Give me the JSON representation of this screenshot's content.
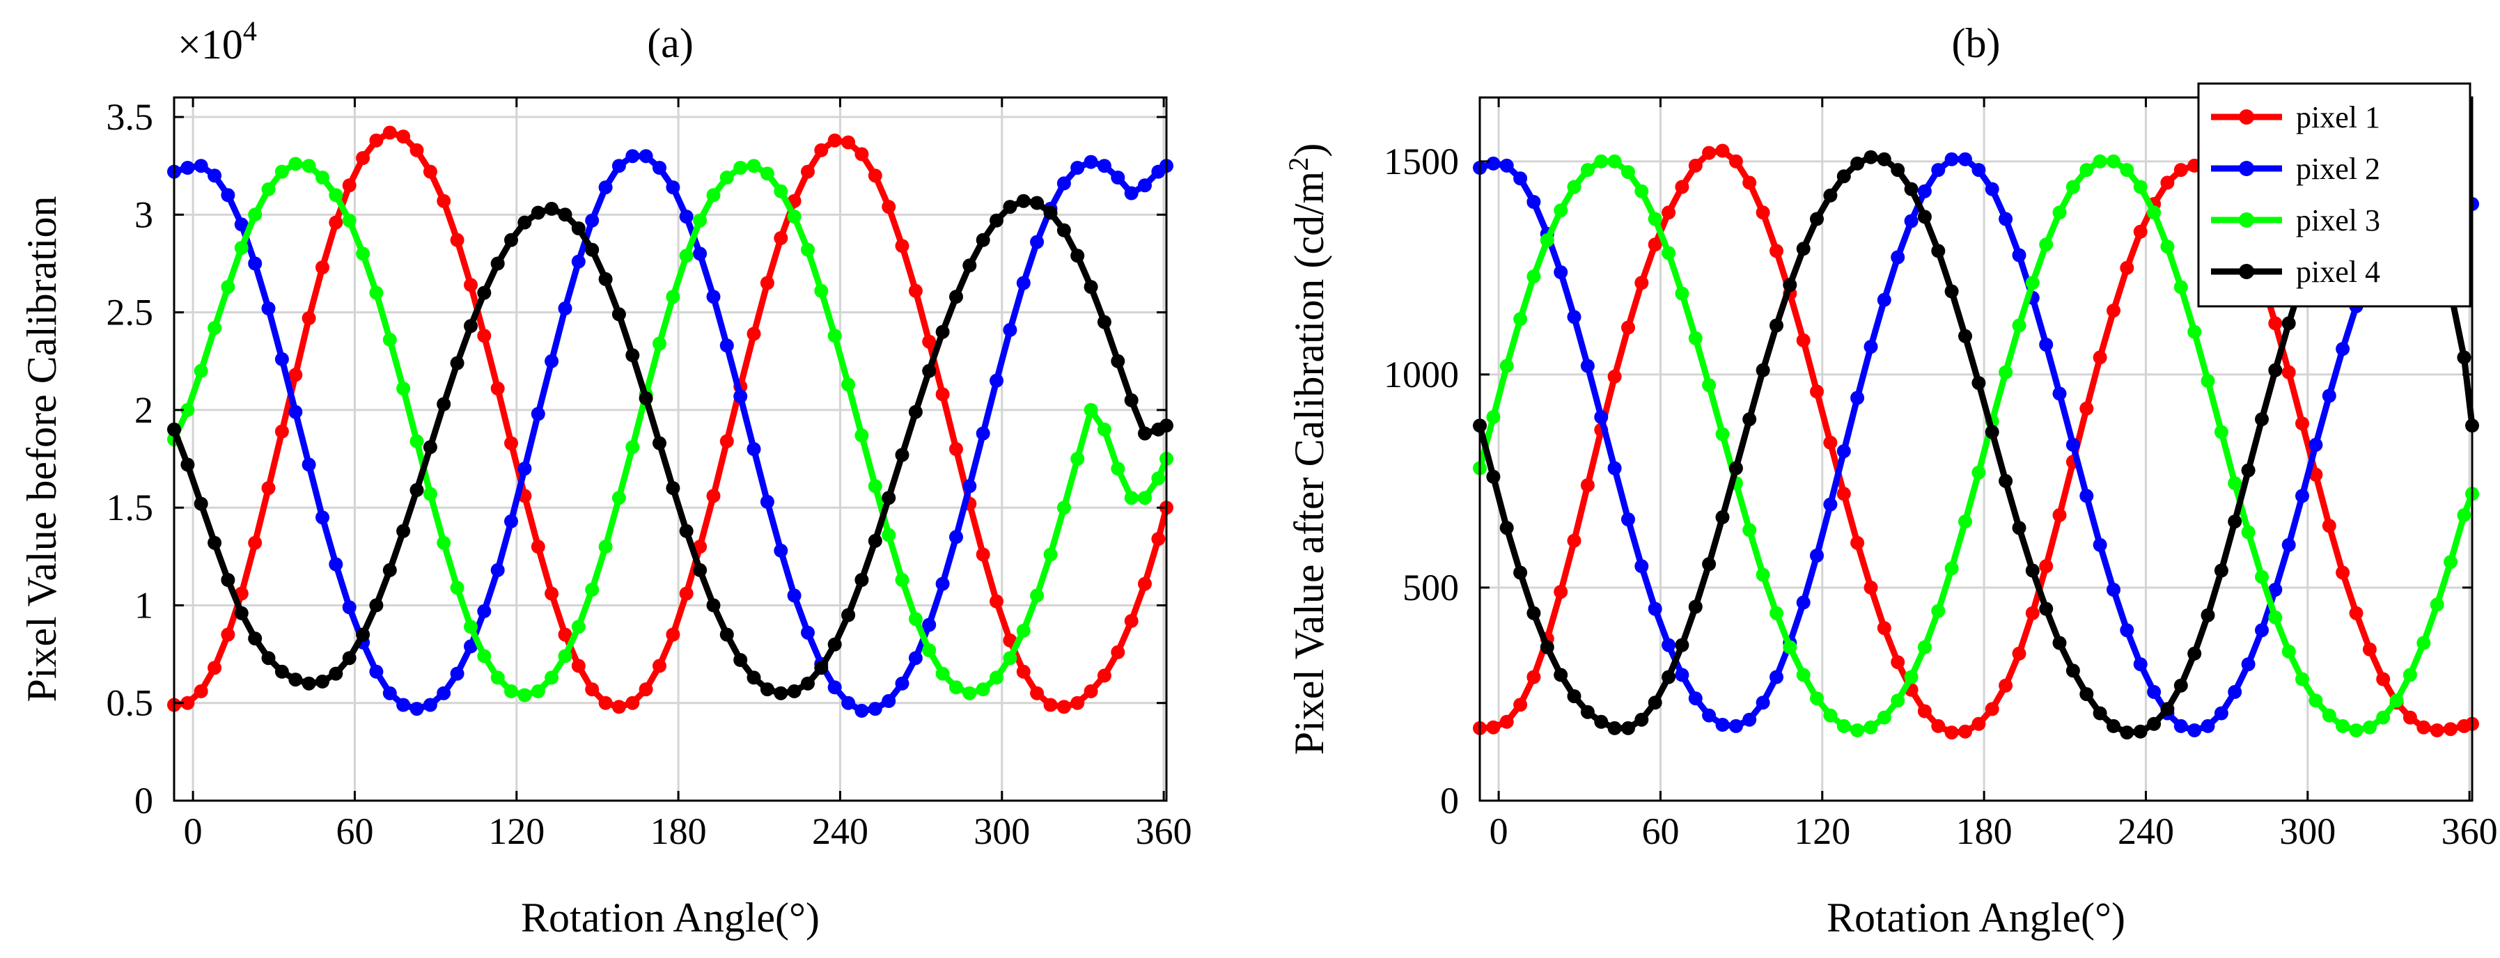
{
  "chart_data": [
    {
      "type": "line",
      "title": "(a)",
      "xlabel": "Rotation Angle(°)",
      "ylabel": "Pixel Value before Calibration",
      "exponent_label": "×10",
      "exponent_power": "4",
      "xlim": [
        -7,
        361
      ],
      "ylim": [
        0,
        3.6
      ],
      "xticks": [
        0,
        60,
        120,
        180,
        240,
        300,
        360
      ],
      "yticks": [
        0,
        0.5,
        1,
        1.5,
        2,
        2.5,
        3,
        3.5
      ],
      "ytick_labels": [
        "0",
        "0.5",
        "1",
        "1.5",
        "2",
        "2.5",
        "3",
        "3.5"
      ],
      "grid": true,
      "x": [
        -7,
        -2,
        3,
        8,
        13,
        18,
        23,
        28,
        33,
        38,
        43,
        48,
        53,
        58,
        63,
        68,
        73,
        78,
        83,
        88,
        93,
        98,
        103,
        108,
        113,
        118,
        123,
        128,
        133,
        138,
        143,
        148,
        153,
        158,
        163,
        168,
        173,
        178,
        183,
        188,
        193,
        198,
        203,
        208,
        213,
        218,
        223,
        228,
        233,
        238,
        243,
        248,
        253,
        258,
        263,
        268,
        273,
        278,
        283,
        288,
        293,
        298,
        303,
        308,
        313,
        318,
        323,
        328,
        333,
        338,
        343,
        348,
        353,
        358,
        361
      ],
      "series": [
        {
          "name": "pixel 1",
          "color": "#ff0000",
          "values": [
            0.49,
            0.5,
            0.56,
            0.68,
            0.85,
            1.06,
            1.32,
            1.6,
            1.89,
            2.18,
            2.47,
            2.73,
            2.96,
            3.15,
            3.29,
            3.38,
            3.42,
            3.4,
            3.33,
            3.22,
            3.07,
            2.87,
            2.64,
            2.38,
            2.11,
            1.83,
            1.56,
            1.3,
            1.06,
            0.85,
            0.69,
            0.57,
            0.5,
            0.48,
            0.5,
            0.57,
            0.69,
            0.85,
            1.06,
            1.3,
            1.56,
            1.84,
            2.12,
            2.39,
            2.65,
            2.88,
            3.07,
            3.22,
            3.33,
            3.38,
            3.37,
            3.31,
            3.2,
            3.04,
            2.84,
            2.61,
            2.35,
            2.08,
            1.8,
            1.52,
            1.26,
            1.02,
            0.82,
            0.66,
            0.55,
            0.49,
            0.48,
            0.5,
            0.56,
            0.64,
            0.76,
            0.92,
            1.11,
            1.34,
            1.5
          ]
        },
        {
          "name": "pixel 2",
          "color": "#0000ff",
          "values": [
            3.22,
            3.24,
            3.25,
            3.2,
            3.1,
            2.95,
            2.75,
            2.52,
            2.26,
            1.99,
            1.72,
            1.45,
            1.21,
            0.99,
            0.81,
            0.66,
            0.55,
            0.49,
            0.47,
            0.49,
            0.55,
            0.65,
            0.79,
            0.97,
            1.18,
            1.43,
            1.7,
            1.98,
            2.25,
            2.52,
            2.76,
            2.97,
            3.14,
            3.25,
            3.3,
            3.3,
            3.24,
            3.14,
            2.99,
            2.8,
            2.58,
            2.33,
            2.07,
            1.8,
            1.53,
            1.28,
            1.05,
            0.86,
            0.7,
            0.58,
            0.5,
            0.46,
            0.47,
            0.51,
            0.6,
            0.73,
            0.9,
            1.11,
            1.35,
            1.61,
            1.88,
            2.15,
            2.41,
            2.65,
            2.86,
            3.03,
            3.16,
            3.24,
            3.27,
            3.25,
            3.19,
            3.11,
            3.15,
            3.22,
            3.25
          ]
        },
        {
          "name": "pixel 3",
          "color": "#00ff00",
          "values": [
            1.85,
            2.0,
            2.2,
            2.42,
            2.63,
            2.83,
            3.0,
            3.13,
            3.22,
            3.26,
            3.25,
            3.19,
            3.1,
            2.97,
            2.8,
            2.6,
            2.36,
            2.11,
            1.84,
            1.57,
            1.32,
            1.09,
            0.89,
            0.74,
            0.63,
            0.56,
            0.54,
            0.56,
            0.63,
            0.74,
            0.89,
            1.08,
            1.3,
            1.55,
            1.81,
            2.08,
            2.34,
            2.58,
            2.79,
            2.97,
            3.1,
            3.19,
            3.24,
            3.25,
            3.21,
            3.12,
            2.99,
            2.82,
            2.61,
            2.38,
            2.13,
            1.87,
            1.61,
            1.36,
            1.13,
            0.93,
            0.77,
            0.65,
            0.58,
            0.55,
            0.57,
            0.63,
            0.73,
            0.87,
            1.05,
            1.26,
            1.5,
            1.75,
            2.0,
            1.9,
            1.7,
            1.55,
            1.55,
            1.65,
            1.75
          ]
        },
        {
          "name": "pixel 4",
          "color": "#000000",
          "values": [
            1.9,
            1.72,
            1.52,
            1.32,
            1.13,
            0.96,
            0.83,
            0.73,
            0.66,
            0.62,
            0.6,
            0.61,
            0.65,
            0.73,
            0.85,
            1.0,
            1.18,
            1.38,
            1.59,
            1.81,
            2.03,
            2.24,
            2.43,
            2.6,
            2.75,
            2.87,
            2.96,
            3.01,
            3.03,
            3.0,
            2.93,
            2.82,
            2.67,
            2.49,
            2.28,
            2.06,
            1.83,
            1.6,
            1.38,
            1.18,
            1.0,
            0.85,
            0.72,
            0.63,
            0.57,
            0.55,
            0.56,
            0.6,
            0.68,
            0.8,
            0.95,
            1.13,
            1.33,
            1.55,
            1.77,
            1.99,
            2.2,
            2.4,
            2.58,
            2.74,
            2.87,
            2.97,
            3.04,
            3.07,
            3.06,
            3.01,
            2.92,
            2.79,
            2.63,
            2.45,
            2.25,
            2.05,
            1.88,
            1.9,
            1.92
          ]
        }
      ]
    },
    {
      "type": "line",
      "title": "(b)",
      "xlabel": "Rotation Angle(°)",
      "ylabel_main": "Pixel Value after Calibration (cd/m",
      "ylabel_sup": "2",
      "ylabel_end": ")",
      "xlim": [
        -7,
        361
      ],
      "ylim": [
        0,
        1650
      ],
      "xticks": [
        0,
        60,
        120,
        180,
        240,
        300,
        360
      ],
      "yticks": [
        0,
        500,
        1000,
        1500
      ],
      "ytick_labels": [
        "0",
        "500",
        "1000",
        "1500"
      ],
      "grid": true,
      "legend_position": "top-right",
      "x": [
        -7,
        -2,
        3,
        8,
        13,
        18,
        23,
        28,
        33,
        38,
        43,
        48,
        53,
        58,
        63,
        68,
        73,
        78,
        83,
        88,
        93,
        98,
        103,
        108,
        113,
        118,
        123,
        128,
        133,
        138,
        143,
        148,
        153,
        158,
        163,
        168,
        173,
        178,
        183,
        188,
        193,
        198,
        203,
        208,
        213,
        218,
        223,
        228,
        233,
        238,
        243,
        248,
        253,
        258,
        263,
        268,
        273,
        278,
        283,
        288,
        293,
        298,
        303,
        308,
        313,
        318,
        323,
        328,
        333,
        338,
        343,
        348,
        353,
        358,
        361
      ],
      "series": [
        {
          "name": "pixel 1",
          "color": "#ff0000",
          "values": [
            170,
            172,
            185,
            225,
            290,
            380,
            490,
            610,
            740,
            870,
            995,
            1110,
            1215,
            1305,
            1380,
            1440,
            1490,
            1520,
            1525,
            1500,
            1450,
            1380,
            1290,
            1190,
            1080,
            960,
            840,
            720,
            605,
            500,
            405,
            325,
            260,
            210,
            175,
            160,
            162,
            180,
            215,
            270,
            345,
            440,
            550,
            670,
            795,
            920,
            1040,
            1150,
            1250,
            1335,
            1400,
            1450,
            1480,
            1490,
            1480,
            1445,
            1390,
            1315,
            1225,
            1120,
            1005,
            885,
            765,
            645,
            535,
            440,
            355,
            285,
            230,
            195,
            172,
            165,
            168,
            175,
            180
          ]
        },
        {
          "name": "pixel 2",
          "color": "#0000ff",
          "values": [
            1485,
            1495,
            1490,
            1460,
            1405,
            1330,
            1240,
            1135,
            1020,
            900,
            780,
            660,
            550,
            450,
            365,
            295,
            240,
            200,
            178,
            175,
            190,
            230,
            290,
            370,
            465,
            575,
            695,
            820,
            945,
            1065,
            1175,
            1275,
            1360,
            1430,
            1480,
            1505,
            1505,
            1480,
            1435,
            1365,
            1280,
            1180,
            1070,
            955,
            835,
            715,
            600,
            495,
            400,
            320,
            255,
            205,
            175,
            165,
            175,
            205,
            255,
            320,
            400,
            495,
            600,
            715,
            835,
            950,
            1060,
            1160,
            1250,
            1325,
            1385,
            1425,
            1445,
            1450,
            1440,
            1420,
            1400
          ]
        },
        {
          "name": "pixel 3",
          "color": "#00ff00",
          "values": [
            780,
            900,
            1020,
            1130,
            1230,
            1315,
            1385,
            1440,
            1480,
            1500,
            1500,
            1475,
            1430,
            1365,
            1285,
            1190,
            1085,
            975,
            860,
            745,
            635,
            530,
            440,
            360,
            295,
            240,
            200,
            175,
            165,
            172,
            195,
            235,
            290,
            360,
            445,
            545,
            655,
            770,
            890,
            1005,
            1115,
            1215,
            1305,
            1380,
            1440,
            1480,
            1500,
            1500,
            1480,
            1440,
            1380,
            1300,
            1205,
            1100,
            985,
            865,
            745,
            630,
            525,
            430,
            350,
            285,
            235,
            200,
            175,
            165,
            172,
            195,
            235,
            295,
            370,
            460,
            560,
            670,
            720
          ]
        },
        {
          "name": "pixel 4",
          "color": "#000000",
          "values": [
            880,
            760,
            640,
            535,
            440,
            360,
            295,
            245,
            208,
            185,
            170,
            170,
            190,
            230,
            290,
            365,
            455,
            555,
            665,
            780,
            895,
            1010,
            1115,
            1210,
            1295,
            1365,
            1420,
            1465,
            1495,
            1510,
            1505,
            1480,
            1435,
            1370,
            1290,
            1195,
            1090,
            980,
            865,
            750,
            640,
            540,
            450,
            370,
            305,
            250,
            205,
            175,
            160,
            162,
            180,
            215,
            270,
            345,
            435,
            540,
            655,
            775,
            895,
            1010,
            1120,
            1220,
            1305,
            1375,
            1430,
            1470,
            1490,
            1490,
            1470,
            1430,
            1370,
            1290,
            1195,
            1040,
            880
          ]
        }
      ]
    }
  ]
}
